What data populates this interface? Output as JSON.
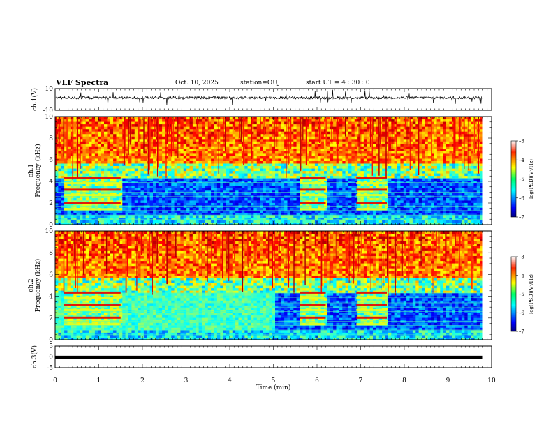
{
  "header": {
    "title": "VLF Spectra",
    "date": "Oct. 10, 2025",
    "station": "station=OUJ",
    "start": "start UT =  4 : 30 : 0"
  },
  "chart_data": [
    {
      "type": "line",
      "panel": "ch1-waveform",
      "ylabel": "ch.1(V)",
      "ylim": [
        -10,
        10
      ],
      "y_ticks": [
        "10",
        "-10"
      ],
      "baseline_v": 1.5,
      "description_values": {
        "typical_amplitude_v": 1.5
      }
    },
    {
      "type": "heatmap",
      "panel": "ch1-spectrogram",
      "ylabel": "ch.1\nFrequency (kHz)",
      "ylabel_lines": [
        "ch.1",
        "Frequency (kHz)"
      ],
      "ylim": [
        0,
        10
      ],
      "y_ticks": [
        "0",
        "2",
        "4",
        "6",
        "8",
        "10"
      ],
      "xlim": [
        0,
        10
      ],
      "colorbar": {
        "label": "log(PSD)(V²/Hz)",
        "range": [
          -7,
          -3
        ],
        "ticks": [
          "-3",
          "-4",
          "-5",
          "-6",
          "-7"
        ]
      },
      "data_end_min": 9.8,
      "bursts_min": [
        [
          0.2,
          1.5
        ],
        [
          5.6,
          6.2
        ],
        [
          6.9,
          7.6
        ]
      ]
    },
    {
      "type": "heatmap",
      "panel": "ch2-spectrogram",
      "ylabel_lines": [
        "ch.2",
        "Frequency (kHz)"
      ],
      "ylim": [
        0,
        10
      ],
      "y_ticks": [
        "0",
        "2",
        "4",
        "6",
        "8",
        "10"
      ],
      "xlim": [
        0,
        10
      ],
      "colorbar": {
        "label": "log(PSD)(V²/Hz)",
        "range": [
          -7,
          -3
        ],
        "ticks": [
          "-3",
          "-4",
          "-5",
          "-6",
          "-7"
        ]
      },
      "data_end_min": 9.8,
      "bursts_min": [
        [
          0.2,
          1.5
        ],
        [
          5.6,
          6.2
        ],
        [
          6.9,
          7.6
        ]
      ]
    },
    {
      "type": "line",
      "panel": "ch3-waveform",
      "ylabel": "ch.3(V)",
      "ylim": [
        -5,
        5
      ],
      "y_ticks": [
        "5",
        "0",
        "-5"
      ],
      "constant_v": -0.3,
      "xlabel": "Time (min)",
      "xlim": [
        0,
        10
      ],
      "x_ticks": [
        "0",
        "1",
        "2",
        "3",
        "4",
        "5",
        "6",
        "7",
        "8",
        "9",
        "10"
      ]
    }
  ],
  "colors": {
    "axis": "#000000",
    "spectrum_low": "#00007f",
    "spectrum_high": "#ff0000"
  }
}
